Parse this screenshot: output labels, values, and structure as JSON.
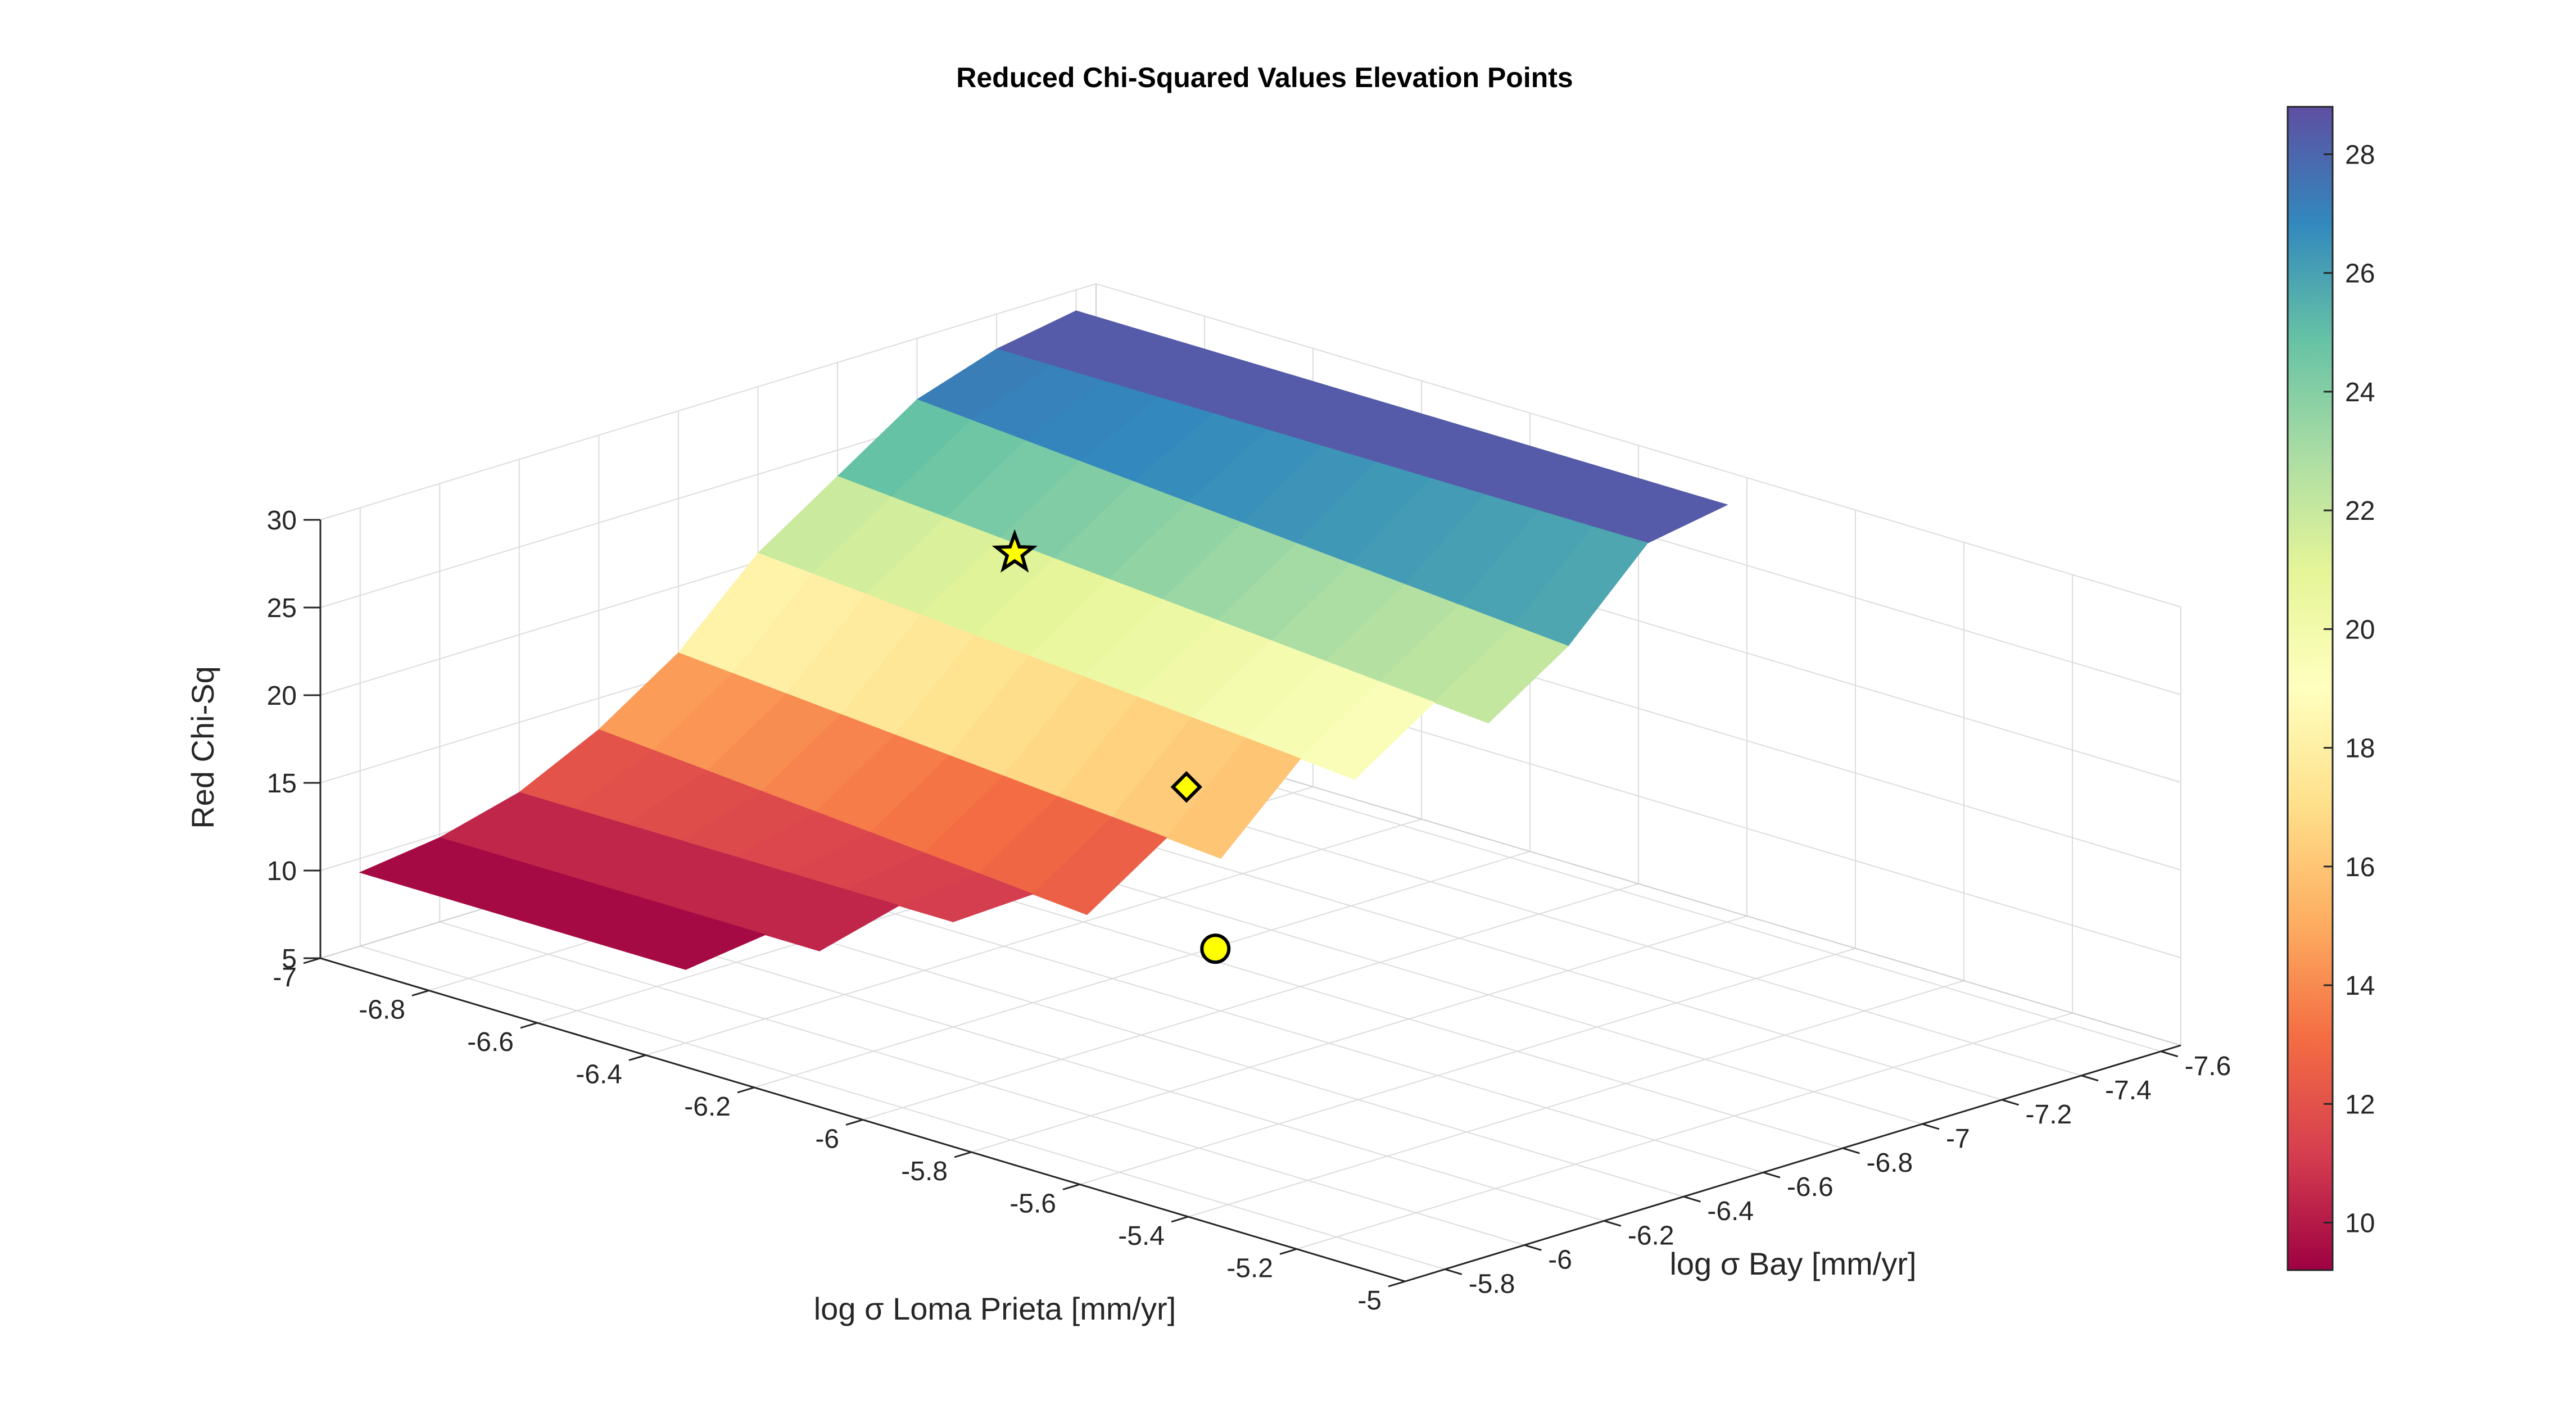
{
  "chart_data": {
    "type": "surface3d",
    "title": "Reduced Chi-Squared Values Elevation Points",
    "xlabel": "log σ Loma Prieta [mm/yr]",
    "ylabel": "log σ Bay [mm/yr]",
    "zlabel": "Red Chi-Sq",
    "xlim": [
      -7,
      -5
    ],
    "ylim": [
      -5.7,
      -7.65
    ],
    "zlim": [
      5,
      30
    ],
    "x_ticks": [
      "-7",
      "-6.8",
      "-6.6",
      "-6.4",
      "-6.2",
      "-6",
      "-5.8",
      "-5.6",
      "-5.4",
      "-5.2",
      "-5"
    ],
    "y_ticks": [
      "-5.8",
      "-6",
      "-6.2",
      "-6.4",
      "-6.6",
      "-6.8",
      "-7",
      "-7.2",
      "-7.4",
      "-7.6"
    ],
    "z_ticks": [
      "5",
      "10",
      "15",
      "20",
      "25",
      "30"
    ],
    "colorbar": {
      "colormap": "spectral",
      "range": [
        9.2,
        28.8
      ],
      "ticks": [
        "10",
        "12",
        "14",
        "16",
        "18",
        "20",
        "22",
        "24",
        "26",
        "28"
      ]
    },
    "grid": true,
    "x_grid": [
      -7.0,
      -6.9,
      -6.8,
      -6.7,
      -6.6,
      -6.5,
      -6.4,
      -6.3,
      -6.2,
      -6.1,
      -6.0,
      -5.9,
      -5.8
    ],
    "y_grid": [
      -5.8,
      -6.0,
      -6.2,
      -6.4,
      -6.6,
      -6.8,
      -7.0,
      -7.2,
      -7.4,
      -7.6
    ],
    "z_profile_by_y": [
      9.2,
      9.8,
      11.0,
      13.2,
      16.2,
      20.5,
      23.5,
      26.5,
      28.0,
      28.8
    ],
    "markers": [
      {
        "name": "star",
        "x": -6.6,
        "y": -6.9,
        "z": 23.5,
        "color": "#ffff00"
      },
      {
        "name": "diamond",
        "x": -6.1,
        "y": -6.65,
        "z": 16.5,
        "color": "#ffff00"
      },
      {
        "name": "circle",
        "x": -5.9,
        "y": -6.45,
        "z": 10.5,
        "color": "#ffff00"
      }
    ]
  }
}
